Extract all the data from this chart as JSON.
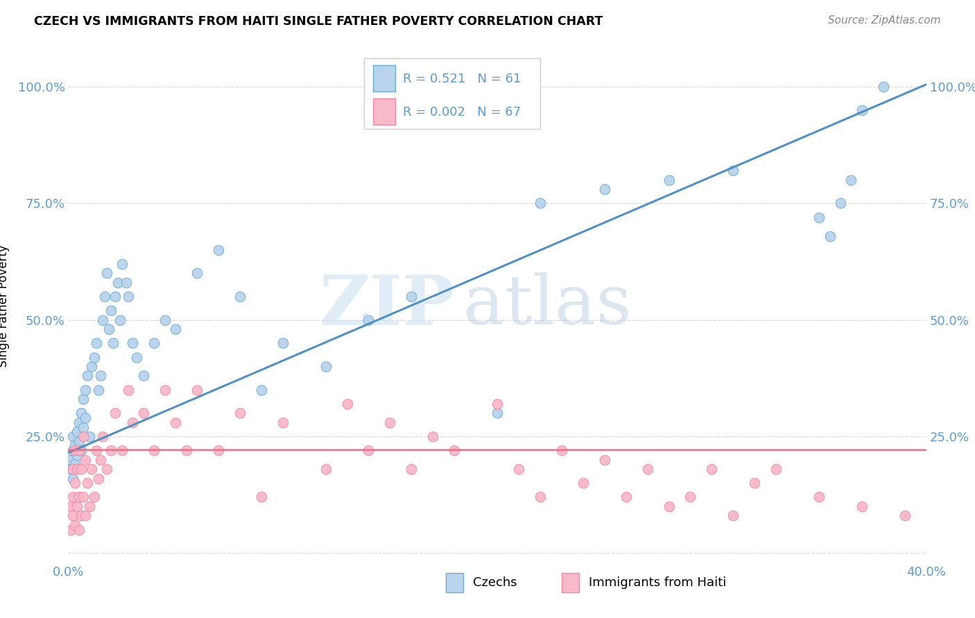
{
  "title": "CZECH VS IMMIGRANTS FROM HAITI SINGLE FATHER POVERTY CORRELATION CHART",
  "source_text": "Source: ZipAtlas.com",
  "ylabel": "Single Father Poverty",
  "xlim": [
    0.0,
    0.4
  ],
  "ylim": [
    -0.02,
    1.08
  ],
  "yticks": [
    0.0,
    0.25,
    0.5,
    0.75,
    1.0
  ],
  "ytick_labels_left": [
    "",
    "25.0%",
    "50.0%",
    "75.0%",
    "100.0%"
  ],
  "ytick_labels_right": [
    "",
    "25.0%",
    "50.0%",
    "75.0%",
    "100.0%"
  ],
  "xtick_labels": [
    "0.0%",
    "40.0%"
  ],
  "czech_color": "#b8d4eb",
  "haiti_color": "#f7b8c8",
  "czech_edge_color": "#6aaad4",
  "haiti_edge_color": "#f088a8",
  "czech_line_color": "#5090c8",
  "haiti_line_color": "#e8708a",
  "tick_color": "#5b9bd5",
  "czech_R": 0.521,
  "czech_N": 61,
  "haiti_R": 0.002,
  "haiti_N": 67,
  "watermark": "ZIPatlas",
  "background_color": "#ffffff",
  "grid_color": "#d8d8d8",
  "legend_label_czech": "Czechs",
  "legend_label_haiti": "Immigrants from Haiti",
  "czech_line_x0": 0.0,
  "czech_line_y0": 0.215,
  "czech_line_x1": 0.4,
  "czech_line_y1": 1.005,
  "haiti_line_x0": 0.0,
  "haiti_line_y0": 0.222,
  "haiti_line_x1": 0.4,
  "haiti_line_y1": 0.222,
  "czech_scatter_x": [
    0.001,
    0.001,
    0.002,
    0.002,
    0.002,
    0.003,
    0.003,
    0.004,
    0.004,
    0.005,
    0.005,
    0.006,
    0.006,
    0.007,
    0.007,
    0.008,
    0.008,
    0.009,
    0.01,
    0.011,
    0.012,
    0.013,
    0.014,
    0.015,
    0.016,
    0.017,
    0.018,
    0.019,
    0.02,
    0.021,
    0.022,
    0.023,
    0.024,
    0.025,
    0.027,
    0.028,
    0.03,
    0.032,
    0.035,
    0.04,
    0.045,
    0.05,
    0.06,
    0.07,
    0.08,
    0.09,
    0.1,
    0.12,
    0.14,
    0.16,
    0.2,
    0.22,
    0.25,
    0.28,
    0.31,
    0.35,
    0.355,
    0.36,
    0.365,
    0.37,
    0.38
  ],
  "czech_scatter_y": [
    0.2,
    0.18,
    0.22,
    0.16,
    0.25,
    0.23,
    0.19,
    0.26,
    0.21,
    0.28,
    0.24,
    0.3,
    0.22,
    0.33,
    0.27,
    0.35,
    0.29,
    0.38,
    0.25,
    0.4,
    0.42,
    0.45,
    0.35,
    0.38,
    0.5,
    0.55,
    0.6,
    0.48,
    0.52,
    0.45,
    0.55,
    0.58,
    0.5,
    0.62,
    0.58,
    0.55,
    0.45,
    0.42,
    0.38,
    0.45,
    0.5,
    0.48,
    0.6,
    0.65,
    0.55,
    0.35,
    0.45,
    0.4,
    0.5,
    0.55,
    0.3,
    0.75,
    0.78,
    0.8,
    0.82,
    0.72,
    0.68,
    0.75,
    0.8,
    0.95,
    1.0
  ],
  "haiti_scatter_x": [
    0.001,
    0.001,
    0.002,
    0.002,
    0.002,
    0.003,
    0.003,
    0.003,
    0.004,
    0.004,
    0.005,
    0.005,
    0.005,
    0.006,
    0.006,
    0.007,
    0.007,
    0.008,
    0.008,
    0.009,
    0.01,
    0.011,
    0.012,
    0.013,
    0.014,
    0.015,
    0.016,
    0.018,
    0.02,
    0.022,
    0.025,
    0.028,
    0.03,
    0.035,
    0.04,
    0.045,
    0.05,
    0.055,
    0.06,
    0.07,
    0.08,
    0.09,
    0.1,
    0.12,
    0.13,
    0.14,
    0.15,
    0.16,
    0.17,
    0.18,
    0.2,
    0.21,
    0.22,
    0.23,
    0.24,
    0.25,
    0.26,
    0.27,
    0.28,
    0.29,
    0.3,
    0.31,
    0.32,
    0.33,
    0.35,
    0.37,
    0.39
  ],
  "haiti_scatter_y": [
    0.1,
    0.05,
    0.08,
    0.12,
    0.18,
    0.06,
    0.15,
    0.22,
    0.1,
    0.18,
    0.05,
    0.12,
    0.22,
    0.08,
    0.18,
    0.12,
    0.25,
    0.08,
    0.2,
    0.15,
    0.1,
    0.18,
    0.12,
    0.22,
    0.16,
    0.2,
    0.25,
    0.18,
    0.22,
    0.3,
    0.22,
    0.35,
    0.28,
    0.3,
    0.22,
    0.35,
    0.28,
    0.22,
    0.35,
    0.22,
    0.3,
    0.12,
    0.28,
    0.18,
    0.32,
    0.22,
    0.28,
    0.18,
    0.25,
    0.22,
    0.32,
    0.18,
    0.12,
    0.22,
    0.15,
    0.2,
    0.12,
    0.18,
    0.1,
    0.12,
    0.18,
    0.08,
    0.15,
    0.18,
    0.12,
    0.1,
    0.08
  ]
}
